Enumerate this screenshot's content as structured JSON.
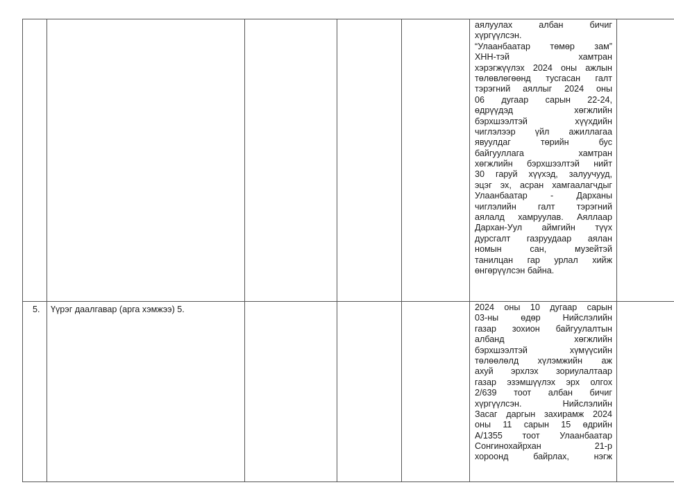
{
  "table": {
    "rows": [
      {
        "number": "",
        "task": "",
        "lines": [
          "аялуулах албан бичиг",
          "хүргүүлсэн.",
          "“Улаанбаатар төмөр зам”",
          "ХНН-тэй хамтран",
          "хэрэгжүүлэх 2024 оны ажлын",
          "төлөвлөгөөнд тусгасан галт",
          "тэрэгний аяллыг 2024 оны",
          "06 дугаар сарын 22-24,",
          "өдрүүдэд хөгжлийн",
          "бэрхшээлтэй хүүхдийн",
          "чиглэлээр үйл ажиллагаа",
          "явуулдаг төрийн бус",
          "байгууллага хамтран",
          "хөгжлийн бэрхшээлтэй нийт",
          "30 гаруй хүүхэд, залуучууд,",
          "эцэг эх, асран хамгаалагчдыг",
          "Улаанбаатар - Дарханы",
          "чиглэлийн галт тэрэгний",
          "аялалд хамруулав. Аяллаар",
          "Дархан-Уул аймгийн түүх",
          "дурсгалт газруудаар аялан",
          "номын сан, музейтэй",
          "танилцан гар урлал хийж",
          "өнгөрүүлсэн байна."
        ]
      },
      {
        "number": "5.",
        "task": "Үүрэг даалгавар (арга хэмжээ) 5.",
        "lines": [
          "2024 оны 10 дугаар сарын",
          "03-ны өдөр Нийслэлийн",
          "газар зохион байгуулалтын",
          "албанд хөгжлийн",
          "бэрхшээлтэй хүмүүсийн",
          "төлөөлөлд хүлэмжийн аж",
          "ахуй эрхлэх зориулалтаар",
          "газар эзэмшүүлэх эрх олгох",
          "2/639 тоот албан бичиг",
          "хүргүүлсэн. Нийслэлийн",
          "Засаг даргын захирамж 2024",
          "оны 11 сарын 15 өдрийн",
          "А/1355 тоот Улаанбаатар",
          "Сонгинохайрхан 21-р",
          "хороонд байрлах, нэгж"
        ]
      }
    ]
  }
}
